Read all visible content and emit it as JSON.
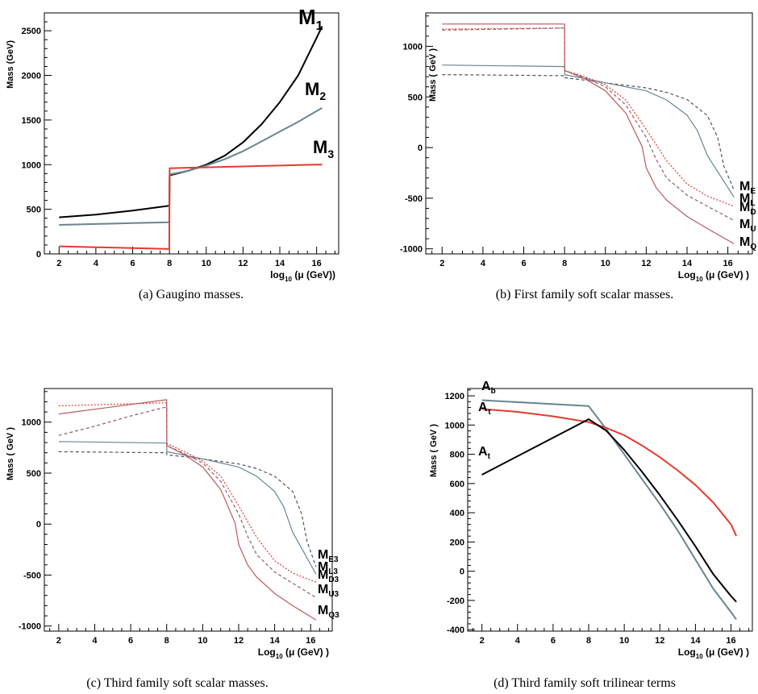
{
  "chart_data": [
    {
      "type": "line",
      "caption": "(a) Gaugino masses.",
      "xlabel": "log",
      "xlabel_sub": "10",
      "xlabel_tail": "(μ (GeV))",
      "ylabel": "Mass (GeV)",
      "xlim": [
        1.2,
        17.2
      ],
      "ylim": [
        0,
        2700
      ],
      "xticks": [
        2,
        4,
        6,
        8,
        10,
        12,
        14,
        16
      ],
      "yticks": [
        0,
        500,
        1000,
        1500,
        2000,
        2500
      ],
      "series": [
        {
          "name": "M1",
          "label_main": "M",
          "label_sub": "1",
          "color": "#000000",
          "x": [
            2,
            4,
            6,
            7.99,
            8.01,
            9,
            10,
            11,
            12,
            13,
            14,
            15,
            16,
            16.3
          ],
          "y": [
            410,
            440,
            485,
            540,
            880,
            930,
            1000,
            1100,
            1250,
            1450,
            1700,
            2000,
            2420,
            2550
          ]
        },
        {
          "name": "M2",
          "label_main": "M",
          "label_sub": "2",
          "color": "#6a8591",
          "x": [
            2,
            4,
            6,
            7.99,
            8.01,
            9,
            10,
            11,
            12,
            13,
            14,
            15,
            16,
            16.3
          ],
          "y": [
            325,
            335,
            345,
            355,
            890,
            930,
            990,
            1060,
            1150,
            1260,
            1370,
            1480,
            1600,
            1635
          ]
        },
        {
          "name": "M3",
          "label_main": "M",
          "label_sub": "3",
          "color": "#e03c30",
          "x": [
            2,
            4,
            6,
            7.99,
            8.01,
            9,
            10,
            11,
            12,
            13,
            14,
            15,
            16,
            16.3
          ],
          "y": [
            85,
            75,
            65,
            55,
            960,
            965,
            970,
            975,
            980,
            985,
            990,
            995,
            1000,
            1000
          ]
        }
      ]
    },
    {
      "type": "line",
      "caption": "(b) First family soft scalar masses.",
      "xlabel": "Log",
      "xlabel_sub": "10",
      "xlabel_tail": "(μ (GeV) )",
      "ylabel": "Mass ( GeV )",
      "xlim": [
        1.2,
        17.2
      ],
      "ylim": [
        -1050,
        1330
      ],
      "xticks": [
        2,
        4,
        6,
        8,
        10,
        12,
        14,
        16
      ],
      "yticks": [
        -1000,
        -500,
        0,
        500,
        1000
      ],
      "series": [
        {
          "name": "ME",
          "label_main": "M",
          "label_sub": "E",
          "color": "#555555",
          "dash": "4,3",
          "x": [
            2,
            8,
            8.01,
            10,
            12,
            13,
            14,
            15,
            15.5,
            15.8,
            16.3
          ],
          "y": [
            720,
            710,
            690,
            640,
            590,
            545,
            475,
            315,
            100,
            -180,
            -420
          ]
        },
        {
          "name": "ML",
          "label_main": "M",
          "label_sub": "L",
          "color": "#6a8591",
          "x": [
            2,
            8,
            8.01,
            10,
            12,
            13,
            14,
            14.5,
            14.8,
            15,
            16.3
          ],
          "y": [
            815,
            800,
            720,
            640,
            560,
            470,
            320,
            170,
            20,
            -80,
            -490
          ]
        },
        {
          "name": "MD",
          "label_main": "M",
          "label_sub": "D",
          "color": "#e03c30",
          "dash": "2,2",
          "x": [
            2,
            8,
            8.01,
            9,
            10,
            11,
            12,
            13,
            14,
            15,
            16.3
          ],
          "y": [
            1170,
            1180,
            760,
            700,
            620,
            470,
            180,
            -130,
            -360,
            -480,
            -580
          ]
        },
        {
          "name": "MU",
          "label_main": "M",
          "label_sub": "U",
          "color": "#8e5c6a",
          "dash": "4,3",
          "x": [
            2,
            8,
            8.01,
            9,
            10,
            11,
            12,
            12.5,
            13,
            14,
            15,
            16.3
          ],
          "y": [
            1160,
            1180,
            760,
            690,
            600,
            420,
            100,
            -120,
            -300,
            -470,
            -580,
            -720
          ]
        },
        {
          "name": "MQ",
          "label_main": "M",
          "label_sub": "Q",
          "color": "#b85b63",
          "x": [
            2,
            8,
            8.01,
            9,
            10,
            11,
            11.8,
            12,
            12.5,
            13,
            14,
            15,
            16.3
          ],
          "y": [
            1220,
            1220,
            760,
            680,
            560,
            340,
            10,
            -200,
            -400,
            -520,
            -680,
            -800,
            -950
          ]
        }
      ]
    },
    {
      "type": "line",
      "caption": "(c) Third family soft scalar masses.",
      "xlabel": "Log",
      "xlabel_sub": "10",
      "xlabel_tail": "(μ (GeV) )",
      "ylabel": "Mass ( GeV )",
      "xlim": [
        1.2,
        17.2
      ],
      "ylim": [
        -1050,
        1330
      ],
      "xticks": [
        2,
        4,
        6,
        8,
        10,
        12,
        14,
        16
      ],
      "yticks": [
        -1000,
        -500,
        0,
        500,
        1000
      ],
      "series": [
        {
          "name": "ME3",
          "label_main": "M",
          "label_sub": "E3",
          "color": "#555555",
          "dash": "4,3",
          "x": [
            2,
            8,
            8.01,
            10,
            12,
            13,
            14,
            15,
            15.5,
            15.8,
            16.3
          ],
          "y": [
            710,
            700,
            680,
            640,
            590,
            545,
            470,
            320,
            100,
            -170,
            -420
          ]
        },
        {
          "name": "ML3",
          "label_main": "M",
          "label_sub": "L3",
          "color": "#6a8591",
          "x": [
            2,
            8,
            8.01,
            10,
            12,
            13,
            14,
            14.5,
            14.8,
            15,
            16.3
          ],
          "y": [
            810,
            795,
            710,
            640,
            560,
            470,
            320,
            170,
            20,
            -80,
            -490
          ]
        },
        {
          "name": "MD3",
          "label_main": "M",
          "label_sub": "D3",
          "color": "#e03c30",
          "dash": "2,2",
          "x": [
            2,
            8,
            8.01,
            9,
            10,
            11,
            12,
            13,
            14,
            15,
            16.3
          ],
          "y": [
            1160,
            1190,
            790,
            710,
            620,
            470,
            180,
            -130,
            -360,
            -480,
            -570
          ]
        },
        {
          "name": "MU3",
          "label_main": "M",
          "label_sub": "U3",
          "color": "#8e5c6a",
          "dash": "4,3",
          "x": [
            2,
            4,
            6,
            8,
            8.01,
            9,
            10,
            11,
            12,
            12.5,
            13,
            14,
            15,
            16.3
          ],
          "y": [
            870,
            960,
            1060,
            1150,
            770,
            690,
            600,
            420,
            100,
            -120,
            -300,
            -470,
            -580,
            -720
          ]
        },
        {
          "name": "MQ3",
          "label_main": "M",
          "label_sub": "Q3",
          "color": "#b85b63",
          "x": [
            2,
            8,
            8.01,
            9,
            10,
            11,
            11.8,
            12,
            12.5,
            13,
            14,
            15,
            16.3
          ],
          "y": [
            1080,
            1220,
            770,
            680,
            560,
            340,
            10,
            -200,
            -400,
            -520,
            -680,
            -800,
            -940
          ]
        }
      ]
    },
    {
      "type": "line",
      "caption": "(d) Third family soft trilinear terms",
      "xlabel": "Log",
      "xlabel_sub": "10",
      "xlabel_tail": "(μ (GeV) )",
      "ylabel": "Mass ( GeV )",
      "xlim": [
        1.2,
        17.2
      ],
      "ylim": [
        -410,
        1250
      ],
      "xticks": [
        2,
        4,
        6,
        8,
        10,
        12,
        14,
        16
      ],
      "yticks": [
        -400,
        -200,
        0,
        200,
        400,
        600,
        800,
        1000,
        1200
      ],
      "series": [
        {
          "name": "Ab",
          "label_main": "A",
          "label_sub": "b",
          "color": "#6a8591",
          "x": [
            2,
            8,
            9,
            10,
            11,
            12,
            13,
            14,
            15,
            16,
            16.3
          ],
          "y": [
            1170,
            1130,
            970,
            800,
            630,
            460,
            280,
            80,
            -120,
            -280,
            -330
          ]
        },
        {
          "name": "Atau",
          "label_main": "A",
          "label_sub": "τ",
          "color": "#e03c30",
          "x": [
            2,
            4,
            6,
            8,
            9,
            10,
            11,
            12,
            13,
            14,
            15,
            16,
            16.3
          ],
          "y": [
            1110,
            1090,
            1060,
            1020,
            980,
            930,
            860,
            780,
            690,
            590,
            470,
            320,
            240
          ]
        },
        {
          "name": "At",
          "label_main": "A",
          "label_sub": "t",
          "color": "#000000",
          "x": [
            2,
            8,
            9,
            10,
            11,
            12,
            13,
            14,
            15,
            16,
            16.3
          ],
          "y": [
            660,
            1040,
            960,
            830,
            680,
            520,
            350,
            170,
            -20,
            -170,
            -210
          ]
        }
      ]
    }
  ]
}
